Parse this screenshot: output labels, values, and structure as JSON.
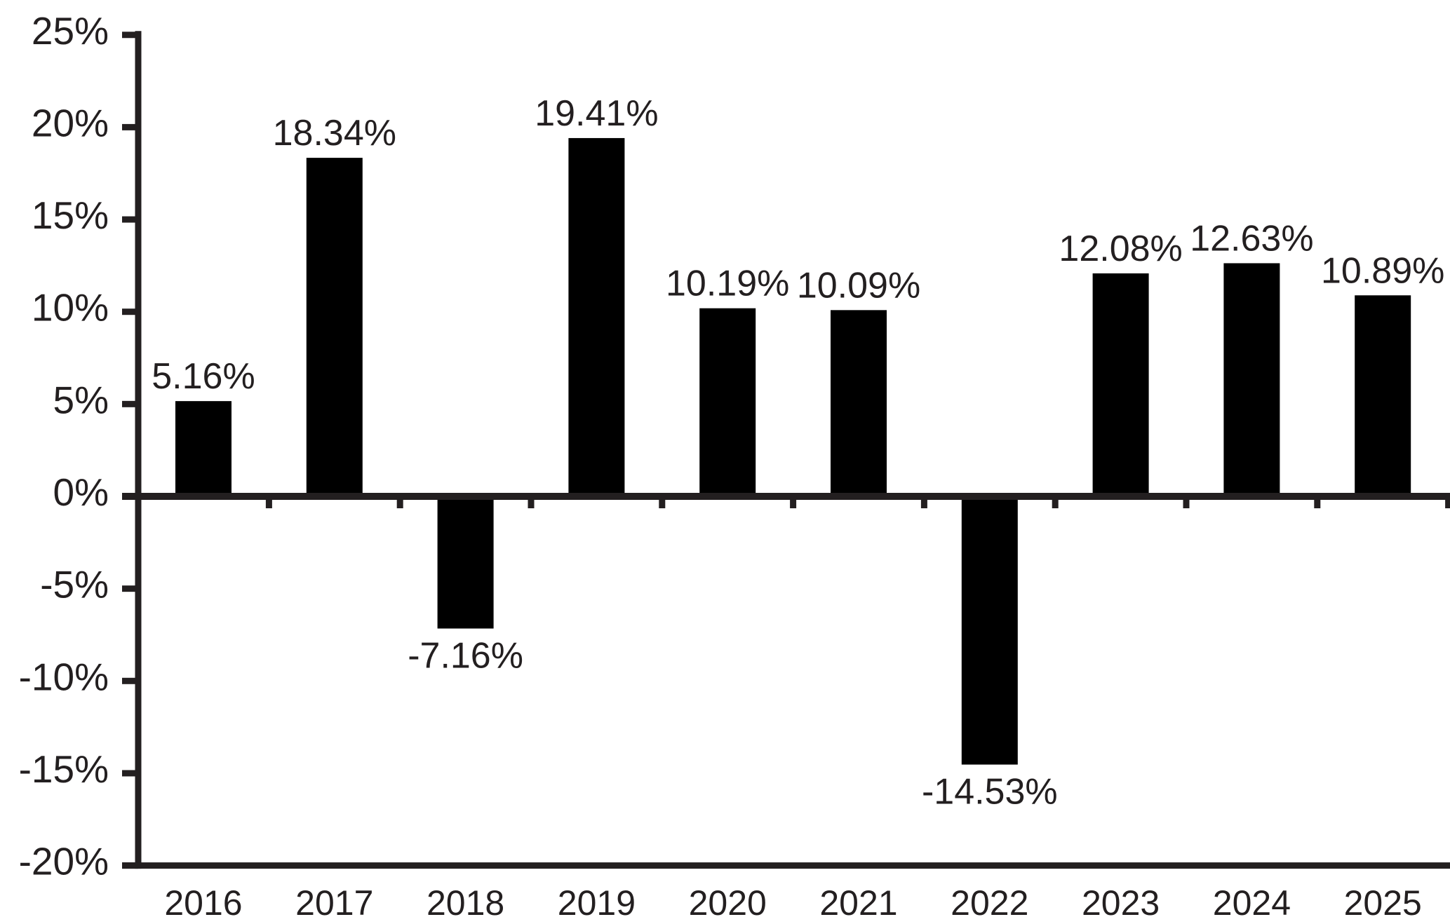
{
  "chart_data": {
    "type": "bar",
    "title": "",
    "xlabel": "",
    "ylabel": "",
    "categories": [
      "2016",
      "2017",
      "2018",
      "2019",
      "2020",
      "2021",
      "2022",
      "2023",
      "2024",
      "2025"
    ],
    "values": [
      5.16,
      18.34,
      -7.16,
      19.41,
      10.19,
      10.09,
      -14.53,
      12.08,
      12.63,
      10.89
    ],
    "bar_labels": [
      "5.16%",
      "18.34%",
      "-7.16%",
      "19.41%",
      "10.19%",
      "10.09%",
      "-14.53%",
      "12.08%",
      "12.63%",
      "10.89%"
    ],
    "ylim": [
      -20,
      25
    ],
    "ytick_step": 5,
    "ytick_labels": [
      "25%",
      "20%",
      "15%",
      "10%",
      "5%",
      "0%",
      "-5%",
      "-10%",
      "-15%",
      "-20%"
    ],
    "grid": false,
    "legend": null,
    "baseline_value": 0,
    "colors": {
      "bar": "#000000",
      "axis": "#231f20",
      "text": "#231f20",
      "background": "#ffffff"
    }
  }
}
